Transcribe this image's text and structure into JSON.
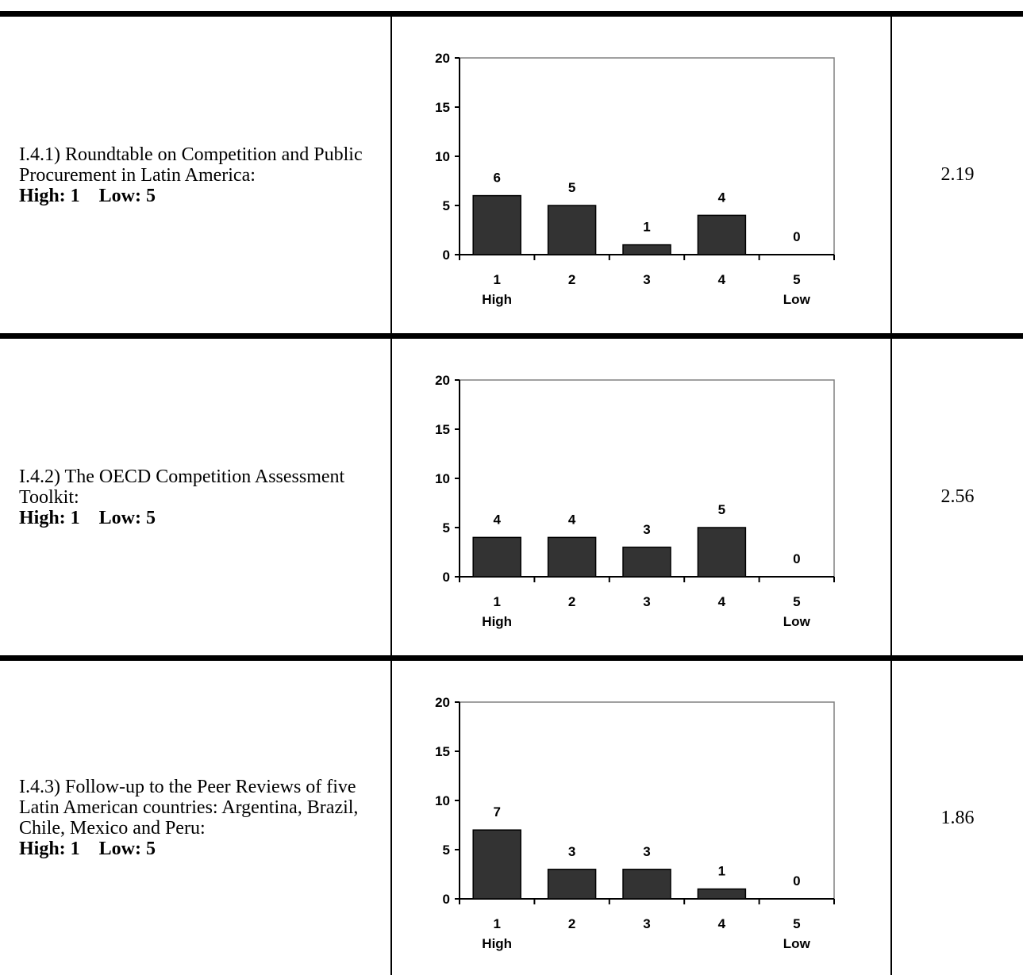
{
  "rows": [
    {
      "title": "I.4.1)  Roundtable on Competition and Public Procurement in Latin America:",
      "scale": "High: 1    Low: 5",
      "score": "2.19",
      "chart_data": {
        "type": "bar",
        "categories": [
          "1",
          "2",
          "3",
          "4",
          "5"
        ],
        "category_sublabels": [
          "High",
          "",
          "",
          "",
          "Low"
        ],
        "values": [
          6,
          5,
          1,
          4,
          0
        ],
        "data_labels": [
          "6",
          "5",
          "1",
          "4",
          "0"
        ],
        "ylim": [
          0,
          20
        ],
        "yticks": [
          "0",
          "5",
          "10",
          "15",
          "20"
        ],
        "grid": false,
        "bar_color": "#333333"
      }
    },
    {
      "title": "I.4.2)  The OECD Competition Assessment Toolkit:",
      "scale": "High: 1    Low: 5",
      "score": "2.56",
      "chart_data": {
        "type": "bar",
        "categories": [
          "1",
          "2",
          "3",
          "4",
          "5"
        ],
        "category_sublabels": [
          "High",
          "",
          "",
          "",
          "Low"
        ],
        "values": [
          4,
          4,
          3,
          5,
          0
        ],
        "data_labels": [
          "4",
          "4",
          "3",
          "5",
          "0"
        ],
        "ylim": [
          0,
          20
        ],
        "yticks": [
          "0",
          "5",
          "10",
          "15",
          "20"
        ],
        "grid": false,
        "bar_color": "#333333"
      }
    },
    {
      "title": "I.4.3)  Follow-up to the Peer Reviews of five Latin American countries: Argentina, Brazil, Chile, Mexico and Peru:",
      "scale": "High: 1    Low: 5",
      "score": "1.86",
      "chart_data": {
        "type": "bar",
        "categories": [
          "1",
          "2",
          "3",
          "4",
          "5"
        ],
        "category_sublabels": [
          "High",
          "",
          "",
          "",
          "Low"
        ],
        "values": [
          7,
          3,
          3,
          1,
          0
        ],
        "data_labels": [
          "7",
          "3",
          "3",
          "1",
          "0"
        ],
        "ylim": [
          0,
          20
        ],
        "yticks": [
          "0",
          "5",
          "10",
          "15",
          "20"
        ],
        "grid": false,
        "bar_color": "#333333"
      }
    }
  ]
}
